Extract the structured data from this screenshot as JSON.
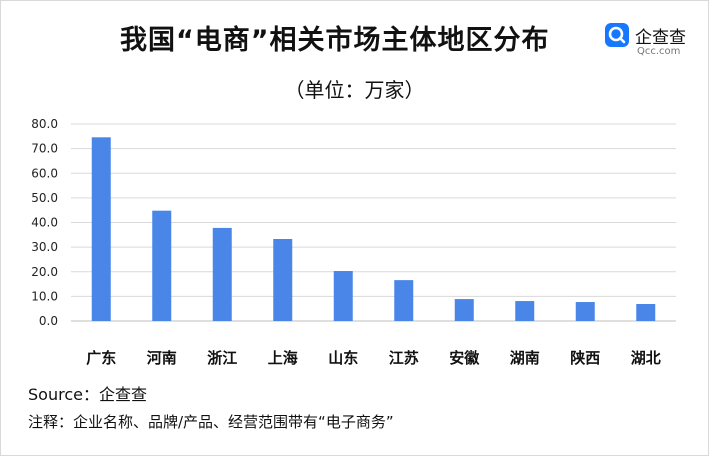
{
  "title": "我国“电商”相关市场主体地区分布",
  "subtitle": "（单位：万家）",
  "logo": {
    "text": "企查查",
    "sub": "Qcc.com",
    "icon": "qcc-logo-icon",
    "color": "#1677ff"
  },
  "chart_data": {
    "type": "bar",
    "categories": [
      "广东",
      "河南",
      "浙江",
      "上海",
      "山东",
      "江苏",
      "安徽",
      "湖南",
      "陕西",
      "湖北"
    ],
    "values": [
      74.6,
      44.8,
      37.8,
      33.3,
      20.3,
      16.6,
      8.9,
      8.1,
      7.7,
      6.9
    ],
    "ylim": [
      0,
      80
    ],
    "yticks": [
      "0.0",
      "10.0",
      "20.0",
      "30.0",
      "40.0",
      "50.0",
      "60.0",
      "70.0",
      "80.0"
    ],
    "grid": true,
    "bar_color": "#4a86e8"
  },
  "source": "Source：企查查",
  "note": "注释：企业名称、品牌/产品、经营范围带有“电子商务”"
}
